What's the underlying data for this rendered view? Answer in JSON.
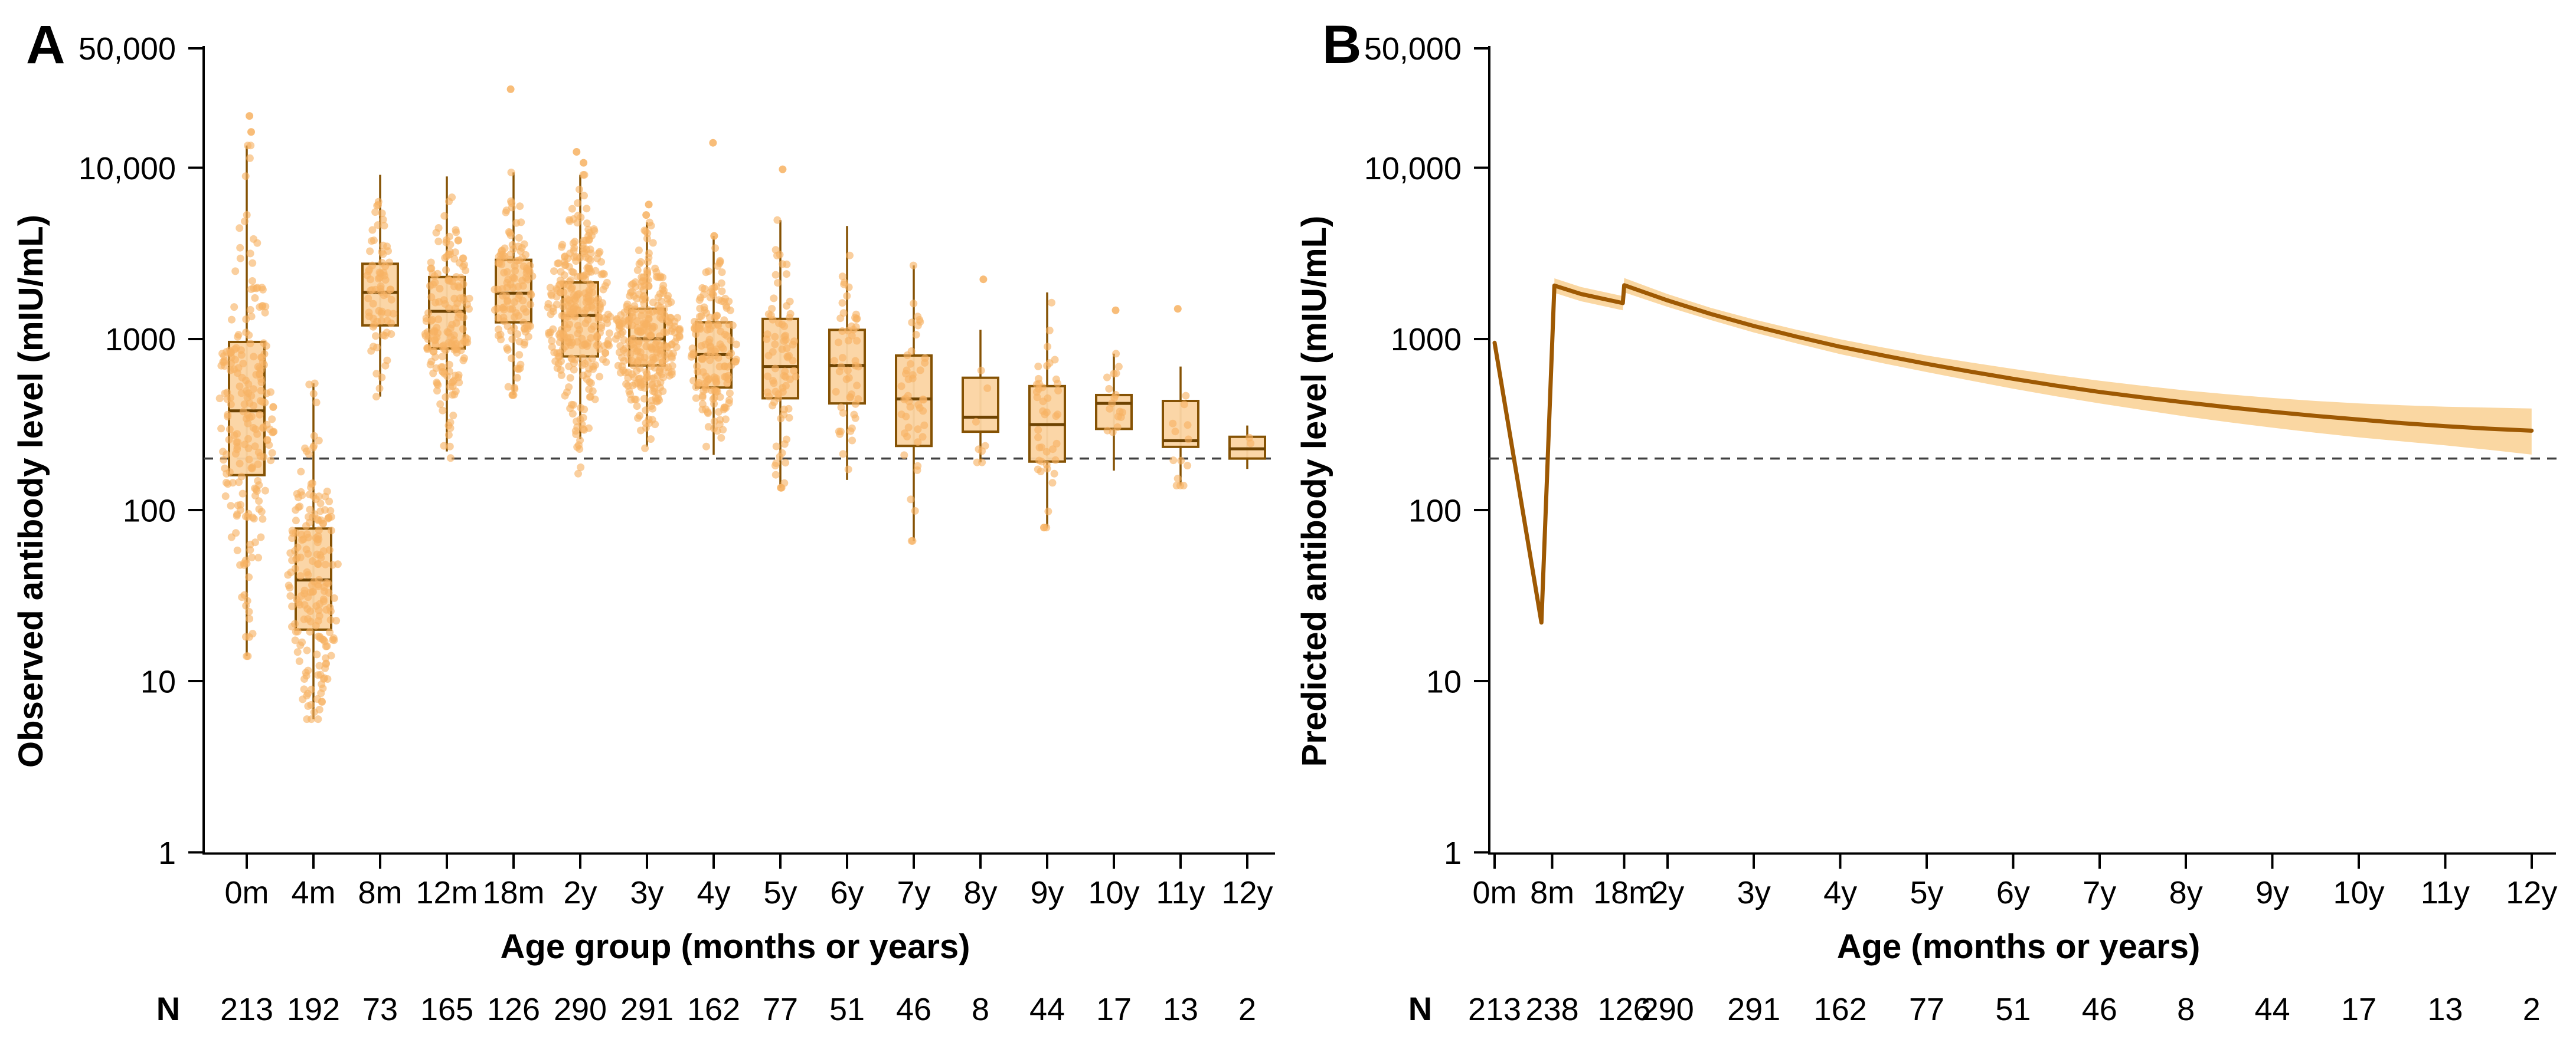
{
  "figure": {
    "colors": {
      "point_fill": "#F7B262",
      "box_fill": "#FBD4A2",
      "box_stroke": "#855204",
      "median_stroke": "#6E4302",
      "line_stroke": "#9E5903",
      "band_fill": "#FAD7A2",
      "threshold_stroke": "#404040",
      "axis_stroke": "#000000"
    },
    "threshold_value": 200,
    "y_axis": {
      "tick_values": [
        1,
        10,
        100,
        1000,
        10000,
        50000
      ],
      "tick_labels": [
        "1",
        "10",
        "100",
        "1000",
        "10,000",
        "50,000"
      ],
      "min": 1,
      "max": 50000,
      "scale": "log"
    }
  },
  "chart_data": [
    {
      "type": "box",
      "panel_letter": "A",
      "ylabel": "Observed antibody level (mIU/mL)",
      "xlabel": "Age group (months or years)",
      "n_row_label": "N",
      "ylim": [
        1,
        50000
      ],
      "grid": false,
      "threshold": 200,
      "groups": [
        {
          "label": "0m",
          "n": 213,
          "whisker_low": 14,
          "q1": 160,
          "median": 380,
          "q3": 960,
          "whisker_high": 13500,
          "points_min": 14,
          "points_max": 13500,
          "outliers": [
            16200,
            20100
          ]
        },
        {
          "label": "4m",
          "n": 192,
          "whisker_low": 6,
          "q1": 20,
          "median": 39,
          "q3": 78,
          "whisker_high": 550,
          "points_min": 6,
          "points_max": 550,
          "outliers": []
        },
        {
          "label": "8m",
          "n": 73,
          "whisker_low": 460,
          "q1": 1200,
          "median": 1870,
          "q3": 2750,
          "whisker_high": 9100,
          "points_min": 460,
          "points_max": 9100,
          "outliers": []
        },
        {
          "label": "12m",
          "n": 165,
          "whisker_low": 220,
          "q1": 880,
          "median": 1450,
          "q3": 2300,
          "whisker_high": 8900,
          "points_min": 130,
          "points_max": 8900,
          "outliers": []
        },
        {
          "label": "18m",
          "n": 126,
          "whisker_low": 470,
          "q1": 1250,
          "median": 1850,
          "q3": 2900,
          "whisker_high": 9400,
          "points_min": 470,
          "points_max": 9400,
          "outliers": [
            28800
          ]
        },
        {
          "label": "2y",
          "n": 290,
          "whisker_low": 260,
          "q1": 790,
          "median": 1370,
          "q3": 2140,
          "whisker_high": 9100,
          "points_min": 145,
          "points_max": 9100,
          "outliers": [
            10700,
            12400
          ]
        },
        {
          "label": "3y",
          "n": 291,
          "whisker_low": 235,
          "q1": 700,
          "median": 1000,
          "q3": 1500,
          "whisker_high": 4800,
          "points_min": 120,
          "points_max": 4800,
          "outliers": [
            5300,
            6100
          ]
        },
        {
          "label": "4y",
          "n": 162,
          "whisker_low": 210,
          "q1": 520,
          "median": 810,
          "q3": 1250,
          "whisker_high": 4000,
          "points_min": 100,
          "points_max": 4000,
          "outliers": [
            14000
          ]
        },
        {
          "label": "5y",
          "n": 77,
          "whisker_low": 135,
          "q1": 450,
          "median": 690,
          "q3": 1310,
          "whisker_high": 4950,
          "points_min": 135,
          "points_max": 4950,
          "outliers": [
            9800
          ]
        },
        {
          "label": "6y",
          "n": 51,
          "whisker_low": 150,
          "q1": 420,
          "median": 700,
          "q3": 1130,
          "whisker_high": 4570,
          "points_min": 150,
          "points_max": 4570,
          "outliers": []
        },
        {
          "label": "7y",
          "n": 46,
          "whisker_low": 66,
          "q1": 237,
          "median": 446,
          "q3": 800,
          "whisker_high": 2690,
          "points_min": 66,
          "points_max": 2690,
          "outliers": []
        },
        {
          "label": "8y",
          "n": 8,
          "whisker_low": 190,
          "q1": 287,
          "median": 349,
          "q3": 593,
          "whisker_high": 1130,
          "points_min": 190,
          "points_max": 1130,
          "outliers": [
            2230
          ]
        },
        {
          "label": "9y",
          "n": 44,
          "whisker_low": 79,
          "q1": 192,
          "median": 316,
          "q3": 530,
          "whisker_high": 1870,
          "points_min": 79,
          "points_max": 1870,
          "outliers": []
        },
        {
          "label": "10y",
          "n": 17,
          "whisker_low": 170,
          "q1": 298,
          "median": 420,
          "q3": 470,
          "whisker_high": 820,
          "points_min": 170,
          "points_max": 820,
          "outliers": [
            1470
          ]
        },
        {
          "label": "11y",
          "n": 13,
          "whisker_low": 139,
          "q1": 234,
          "median": 254,
          "q3": 434,
          "whisker_high": 690,
          "points_min": 139,
          "points_max": 690,
          "outliers": [
            1500
          ]
        },
        {
          "label": "12y",
          "n": 2,
          "whisker_low": 174,
          "q1": 200,
          "median": 228,
          "q3": 268,
          "whisker_high": 312,
          "points_min": 174,
          "points_max": 312,
          "outliers": []
        }
      ]
    },
    {
      "type": "line",
      "panel_letter": "B",
      "ylabel": "Predicted antibody level (mIU/mL)",
      "xlabel": "Age (months or years)",
      "n_row_label": "N",
      "ylim": [
        1,
        50000
      ],
      "grid": false,
      "threshold": 200,
      "x_unit": "months",
      "x_months": [
        0,
        6.5,
        8.3,
        12,
        17.8,
        18,
        24,
        30,
        36,
        42,
        48,
        54,
        60,
        66,
        72,
        78,
        84,
        90,
        96,
        102,
        108,
        114,
        120,
        126,
        132,
        138,
        144
      ],
      "y_values": [
        950,
        22,
        2050,
        1830,
        1620,
        2060,
        1680,
        1400,
        1190,
        1030,
        900,
        800,
        715,
        645,
        585,
        533,
        490,
        455,
        425,
        398,
        375,
        355,
        338,
        322,
        309,
        299,
        291
      ],
      "band_months": [
        8.3,
        12,
        17.8,
        18,
        24,
        30,
        36,
        42,
        48,
        54,
        60,
        66,
        72,
        78,
        84,
        90,
        96,
        102,
        108,
        114,
        120,
        126,
        132,
        138,
        144
      ],
      "band_upper": [
        2260,
        2010,
        1780,
        2270,
        1830,
        1520,
        1300,
        1130,
        995,
        890,
        800,
        730,
        668,
        615,
        570,
        532,
        500,
        474,
        452,
        434,
        420,
        410,
        402,
        397,
        392
      ],
      "band_lower": [
        1860,
        1660,
        1470,
        1870,
        1540,
        1290,
        1090,
        940,
        815,
        720,
        640,
        572,
        512,
        462,
        420,
        384,
        352,
        326,
        303,
        283,
        266,
        252,
        239,
        225,
        211
      ],
      "x_ticks": [
        {
          "label": "0m",
          "month": 0,
          "n": 213
        },
        {
          "label": "8m",
          "month": 8,
          "n": 238
        },
        {
          "label": "18m",
          "month": 18,
          "n": 126
        },
        {
          "label": "2y",
          "month": 24,
          "n": 290
        },
        {
          "label": "3y",
          "month": 36,
          "n": 291
        },
        {
          "label": "4y",
          "month": 48,
          "n": 162
        },
        {
          "label": "5y",
          "month": 60,
          "n": 77
        },
        {
          "label": "6y",
          "month": 72,
          "n": 51
        },
        {
          "label": "7y",
          "month": 84,
          "n": 46
        },
        {
          "label": "8y",
          "month": 96,
          "n": 8
        },
        {
          "label": "9y",
          "month": 108,
          "n": 44
        },
        {
          "label": "10y",
          "month": 120,
          "n": 17
        },
        {
          "label": "11y",
          "month": 132,
          "n": 13
        },
        {
          "label": "12y",
          "month": 144,
          "n": 2
        }
      ]
    }
  ]
}
